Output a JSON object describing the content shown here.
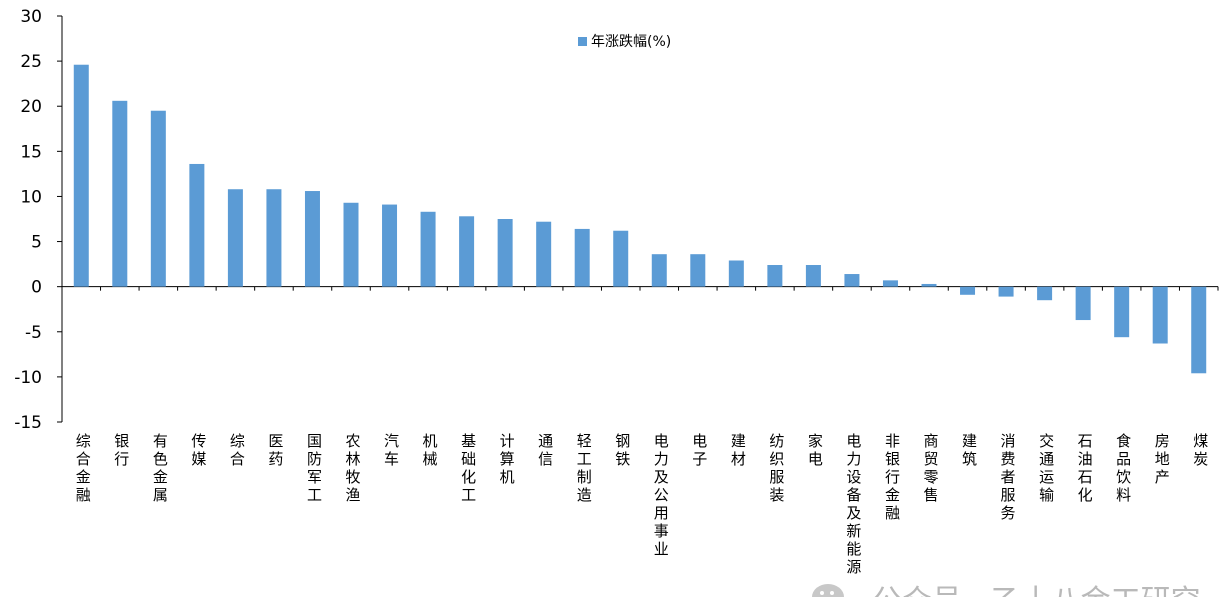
{
  "chart_data": {
    "type": "bar",
    "title": "",
    "xlabel": "",
    "ylabel": "",
    "ylim": [
      -15,
      30
    ],
    "yticks": [
      30,
      25,
      20,
      15,
      10,
      5,
      0,
      -5,
      -10,
      -15
    ],
    "grid": false,
    "legend_position": "top-center",
    "bar_color": "#5b9bd5",
    "categories": [
      "综合金融",
      "银行",
      "有色金属",
      "传媒",
      "综合",
      "医药",
      "国防军工",
      "农林牧渔",
      "汽车",
      "机械",
      "基础化工",
      "计算机",
      "通信",
      "轻工制造",
      "钢铁",
      "电力及公用事业",
      "电子",
      "建材",
      "纺织服装",
      "家电",
      "电力设备及新能源",
      "非银行金融",
      "商贸零售",
      "建筑",
      "消费者服务",
      "交通运输",
      "石油石化",
      "食品饮料",
      "房地产",
      "煤炭"
    ],
    "series": [
      {
        "name": "年涨跌幅(%)",
        "values": [
          24.6,
          20.6,
          19.5,
          13.6,
          10.8,
          10.8,
          10.6,
          9.3,
          9.1,
          8.3,
          7.8,
          7.5,
          7.2,
          6.4,
          6.2,
          3.6,
          3.6,
          2.9,
          2.4,
          2.4,
          1.4,
          0.7,
          0.3,
          -0.9,
          -1.1,
          -1.5,
          -3.7,
          -5.6,
          -6.3,
          -9.6
        ]
      }
    ]
  },
  "watermark": {
    "icon": "wechat-icon",
    "text": "公众号 · 乙十八金工研究"
  }
}
